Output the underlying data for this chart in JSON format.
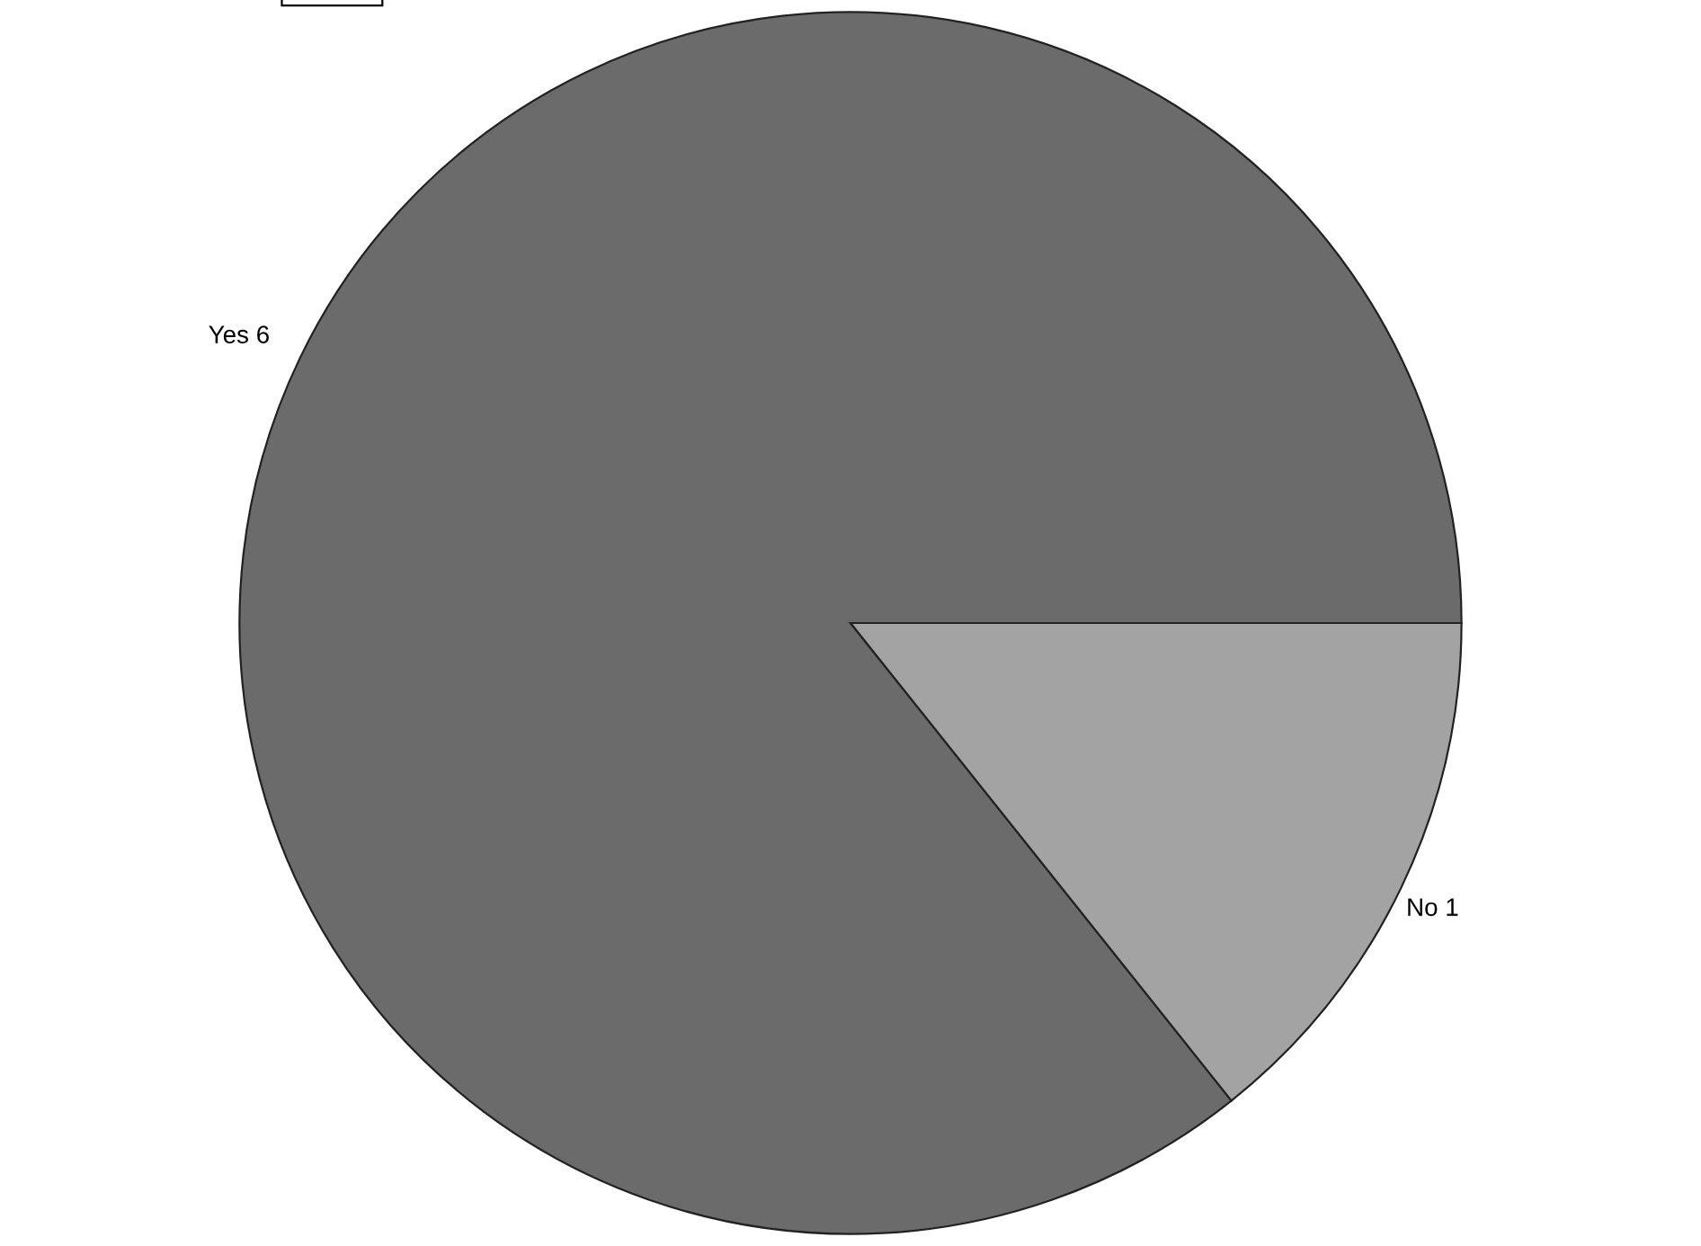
{
  "chart_data": {
    "type": "pie",
    "categories": [
      "Yes",
      "No"
    ],
    "values": [
      6,
      1
    ],
    "colors": [
      "#6b6b6b",
      "#a3a3a3"
    ],
    "data_labels": true,
    "legend": false
  }
}
